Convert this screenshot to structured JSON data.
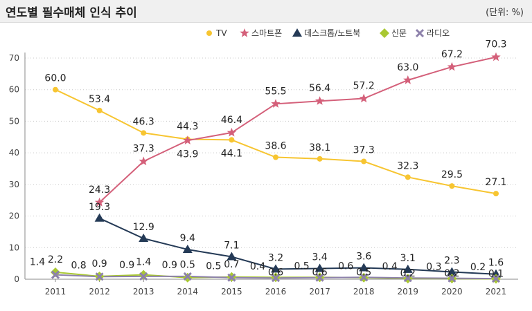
{
  "header": {
    "title": "연도별 필수매체 인식 추이",
    "unit": "(단위: %)"
  },
  "chart_data": {
    "type": "line",
    "title": "연도별 필수매체 인식 추이",
    "unit": "(단위: %)",
    "x": [
      "2011",
      "2012",
      "2013",
      "2014",
      "2015",
      "2016",
      "2017",
      "2018",
      "2019",
      "2020",
      "2021"
    ],
    "ylim": [
      0,
      70
    ],
    "yticks": [
      0,
      10,
      20,
      30,
      40,
      50,
      60,
      70
    ],
    "grid": "horizontal-dotted",
    "legend_position": "top-right",
    "series": [
      {
        "name": "TV",
        "color": "#f7c531",
        "marker": "circle",
        "values": [
          60.0,
          53.4,
          46.3,
          44.3,
          44.1,
          38.6,
          38.1,
          37.3,
          32.3,
          29.5,
          27.1
        ],
        "labels": [
          "60.0",
          "53.4",
          "46.3",
          "44.3",
          "44.1",
          "38.6",
          "38.1",
          "37.3",
          "32.3",
          "29.5",
          "27.1"
        ]
      },
      {
        "name": "스마트폰",
        "color": "#d4607a",
        "marker": "star",
        "values": [
          null,
          24.3,
          37.3,
          43.9,
          46.4,
          55.5,
          56.4,
          57.2,
          63.0,
          67.2,
          70.3
        ],
        "labels": [
          null,
          "24.3",
          "37.3",
          "43.9",
          "46.4",
          "55.5",
          "56.4",
          "57.2",
          "63.0",
          "67.2",
          "70.3"
        ]
      },
      {
        "name": "데스크톱/노트북",
        "color": "#243a56",
        "marker": "triangle",
        "values": [
          null,
          19.3,
          12.9,
          9.4,
          7.1,
          3.2,
          3.4,
          3.6,
          3.1,
          2.3,
          1.6
        ],
        "labels": [
          null,
          "19.3",
          "12.9",
          "9.4",
          "7.1",
          "3.2",
          "3.4",
          "3.6",
          "3.1",
          "2.3",
          "1.6"
        ]
      },
      {
        "name": "신문",
        "color": "#a9c832",
        "marker": "diamond",
        "values": [
          2.2,
          0.9,
          1.4,
          0.5,
          0.7,
          0.6,
          0.6,
          0.5,
          0.2,
          0.2,
          0.1
        ],
        "labels": [
          "2.2",
          "0.9",
          "1.4",
          "0.5",
          "0.7",
          "0.6",
          "0.6",
          "0.5",
          "0.2",
          "0.2",
          "0.1"
        ]
      },
      {
        "name": "라디오",
        "color": "#8d81ab",
        "marker": "x",
        "values": [
          1.4,
          0.8,
          0.9,
          0.9,
          0.5,
          0.4,
          0.5,
          0.6,
          0.4,
          0.3,
          0.2
        ],
        "labels": [
          "1.4",
          "0.8",
          "0.9",
          "0.9",
          "0.5",
          "0.4",
          "0.5",
          "0.6",
          "0.4",
          "0.3",
          "0.2"
        ]
      }
    ]
  }
}
